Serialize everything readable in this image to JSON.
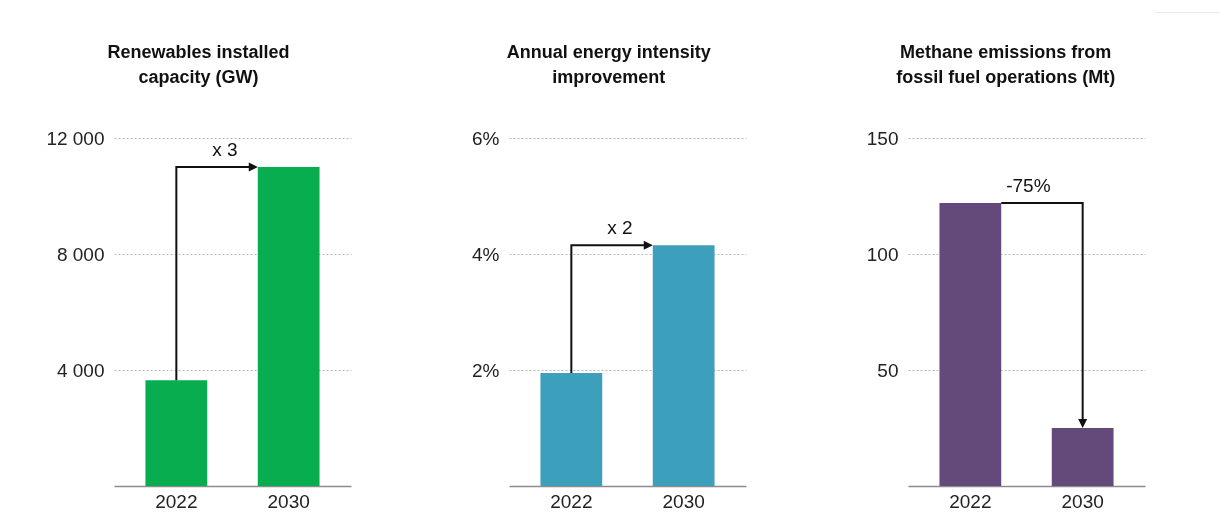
{
  "chart_data": [
    {
      "type": "bar",
      "title": "Renewables installed capacity (GW)",
      "categories": [
        "2022",
        "2030"
      ],
      "values": [
        3650,
        11000
      ],
      "color": "#08ad4f",
      "ylim": [
        0,
        12000
      ],
      "yticks": [
        {
          "value": 4000,
          "label": "4 000"
        },
        {
          "value": 8000,
          "label": "8 000"
        },
        {
          "value": 12000,
          "label": "12 000"
        }
      ],
      "grid": "y",
      "annotations": [
        "x 3"
      ]
    },
    {
      "type": "bar",
      "title": "Annual energy intensity improvement",
      "categories": [
        "2022",
        "2030"
      ],
      "values": [
        1.95,
        4.15
      ],
      "color": "#3c9fbc",
      "ylim": [
        0,
        6
      ],
      "yticks": [
        {
          "value": 2,
          "label": "2%"
        },
        {
          "value": 4,
          "label": "4%"
        },
        {
          "value": 6,
          "label": "6%"
        }
      ],
      "grid": "y",
      "annotations": [
        "x 2"
      ]
    },
    {
      "type": "bar",
      "title": "Methane emissions from fossil fuel operations (Mt)",
      "categories": [
        "2022",
        "2030"
      ],
      "values": [
        122,
        25
      ],
      "color": "#634a7a",
      "ylim": [
        0,
        150
      ],
      "yticks": [
        50,
        100,
        150
      ],
      "grid": "y",
      "annotations": [
        "-75%"
      ]
    }
  ]
}
